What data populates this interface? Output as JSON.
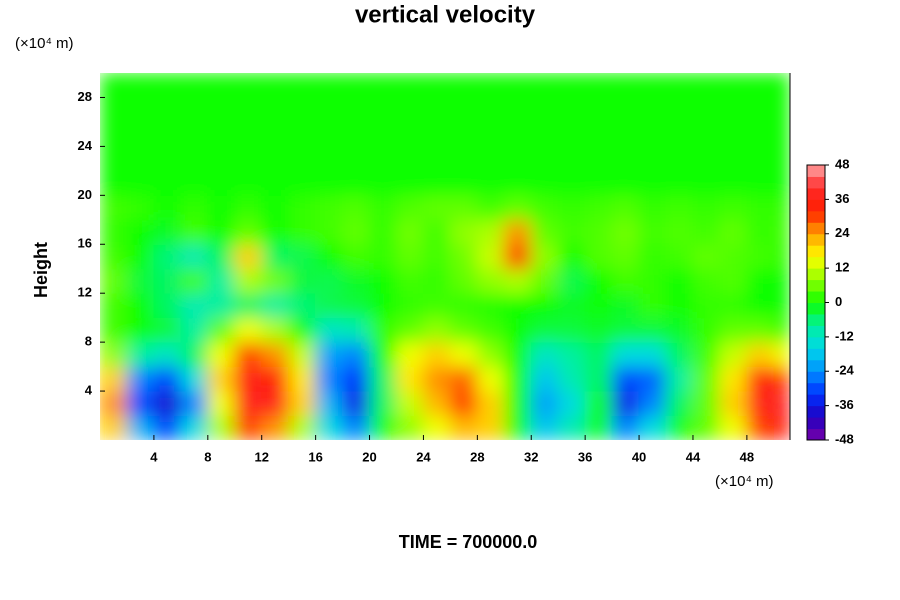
{
  "chart_data": {
    "type": "heatmap",
    "title": "vertical velocity",
    "ylabel": "Height",
    "yunit": "(×10⁴ m)",
    "xunit": "(×10⁴ m)",
    "footer": "TIME = 700000.0",
    "xlim": [
      0,
      51.2
    ],
    "ylim": [
      0,
      30
    ],
    "xticks": [
      4,
      8,
      12,
      16,
      20,
      24,
      28,
      32,
      36,
      40,
      44,
      48
    ],
    "yticks": [
      4,
      8,
      12,
      16,
      20,
      24,
      28
    ],
    "x_edges": [
      0,
      2,
      4,
      6,
      8,
      10,
      12,
      14,
      16,
      18,
      20,
      22,
      24,
      26,
      28,
      30,
      32,
      34,
      36,
      38,
      40,
      42,
      44,
      46,
      48,
      50,
      51.2
    ],
    "y_edges": [
      0,
      2,
      4,
      6,
      8,
      10,
      12,
      14,
      16,
      18,
      20,
      30
    ],
    "z": [
      [
        20,
        -20,
        -30,
        -15,
        10,
        30,
        25,
        10,
        -15,
        -25,
        0,
        8,
        15,
        22,
        20,
        0,
        -18,
        -10,
        0,
        -25,
        -15,
        0,
        5,
        15,
        30,
        35
      ],
      [
        25,
        -30,
        -38,
        -25,
        15,
        38,
        38,
        20,
        -20,
        -35,
        -5,
        12,
        22,
        30,
        20,
        0,
        -22,
        -15,
        0,
        -35,
        -25,
        -5,
        5,
        20,
        38,
        40
      ],
      [
        20,
        -25,
        -30,
        -15,
        20,
        36,
        35,
        18,
        -25,
        -32,
        -5,
        18,
        25,
        28,
        15,
        0,
        -18,
        -10,
        -5,
        -30,
        -28,
        -8,
        5,
        18,
        35,
        30
      ],
      [
        8,
        -8,
        -12,
        -5,
        15,
        30,
        25,
        12,
        -22,
        -25,
        0,
        15,
        20,
        15,
        8,
        0,
        -12,
        -8,
        -5,
        -15,
        -15,
        -5,
        3,
        12,
        20,
        15
      ],
      [
        3,
        0,
        -3,
        -8,
        5,
        15,
        10,
        0,
        -12,
        -10,
        2,
        5,
        8,
        5,
        3,
        0,
        -3,
        -3,
        -2,
        -3,
        -3,
        -2,
        2,
        5,
        5,
        3
      ],
      [
        3,
        0,
        -5,
        -10,
        -8,
        -5,
        -8,
        -6,
        -4,
        -3,
        0,
        2,
        3,
        2,
        1,
        0,
        0,
        -2,
        0,
        -2,
        2,
        0,
        2,
        2,
        0,
        0
      ],
      [
        5,
        -3,
        -5,
        3,
        -8,
        10,
        6,
        -3,
        -4,
        -2,
        0,
        3,
        2,
        5,
        8,
        10,
        5,
        -4,
        0,
        3,
        2,
        0,
        3,
        4,
        0,
        0
      ],
      [
        3,
        0,
        -6,
        -10,
        -5,
        20,
        -5,
        -4,
        0,
        3,
        2,
        5,
        3,
        6,
        12,
        30,
        8,
        0,
        4,
        5,
        2,
        3,
        5,
        4,
        3,
        2
      ],
      [
        2,
        0,
        -2,
        3,
        0,
        5,
        0,
        2,
        3,
        5,
        2,
        6,
        3,
        8,
        10,
        25,
        5,
        3,
        4,
        6,
        3,
        4,
        3,
        5,
        2,
        3
      ],
      [
        3,
        2,
        0,
        2,
        0,
        2,
        0,
        2,
        3,
        4,
        2,
        4,
        5,
        5,
        3,
        5,
        3,
        2,
        3,
        4,
        2,
        3,
        2,
        3,
        2,
        2
      ],
      [
        0,
        0,
        0,
        0,
        0,
        0,
        0,
        0,
        0,
        0,
        0,
        0,
        0,
        0,
        0,
        0,
        0,
        0,
        0,
        0,
        0,
        0,
        0,
        0,
        0,
        0
      ]
    ],
    "colorscale": [
      [
        -48,
        "#7a00a8"
      ],
      [
        -40,
        "#2000c0"
      ],
      [
        -32,
        "#0030ff"
      ],
      [
        -24,
        "#0090ff"
      ],
      [
        -16,
        "#00d8e8"
      ],
      [
        -8,
        "#00f0a0"
      ],
      [
        0,
        "#10ff00"
      ],
      [
        8,
        "#90ff00"
      ],
      [
        16,
        "#ffff00"
      ],
      [
        24,
        "#ffa000"
      ],
      [
        32,
        "#ff2000"
      ],
      [
        40,
        "#ff2828"
      ],
      [
        48,
        "#ffa8a8"
      ]
    ],
    "colorbar": {
      "range": [
        -48,
        48
      ],
      "step": 4,
      "ticks": [
        -48,
        -36,
        -24,
        -12,
        0,
        12,
        24,
        36,
        48
      ]
    }
  }
}
